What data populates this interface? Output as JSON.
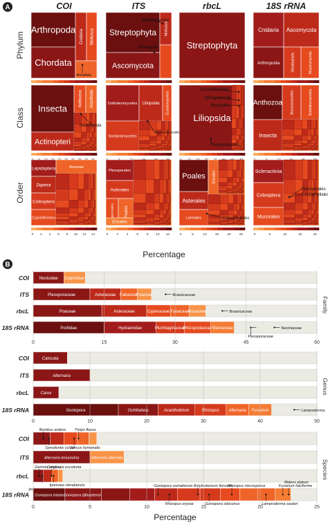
{
  "panel_a": {
    "badge": "A",
    "columns": [
      "COI",
      "ITS",
      "rbcL",
      "18S rRNA"
    ],
    "rows": [
      "Phylum",
      "Class",
      "Order"
    ],
    "xlabel": "Percentage",
    "cells": [
      [
        {
          "ticks": [
            "0",
            "10",
            "20",
            "30",
            "40",
            "50"
          ],
          "labels": [
            {
              "text": "Arthropoda"
            },
            {
              "text": "Chordata"
            },
            {
              "text": "Cnidaria"
            },
            {
              "text": "Mollusca"
            },
            {
              "text": "Annelida"
            }
          ]
        },
        {
          "ticks": [
            "0",
            "20",
            "40",
            "60"
          ],
          "labels": [
            {
              "text": "Streptophyta"
            },
            {
              "text": "Ascomycota"
            },
            {
              "text": "Basidiomycota"
            },
            {
              "text": "Arthropoda"
            },
            {
              "text": "Mollusca"
            }
          ]
        },
        {
          "ticks": [
            "0",
            "20",
            "40",
            "60",
            "80",
            "100"
          ],
          "labels": [
            {
              "text": "Streptophyta"
            }
          ]
        },
        {
          "ticks": [
            "0",
            "5",
            "10",
            "15",
            "20"
          ],
          "labels": [
            {
              "text": "Cnidaria"
            },
            {
              "text": "Ascomycota"
            },
            {
              "text": "Arthropoda"
            },
            {
              "text": "Streptophyta"
            },
            {
              "text": "Mucoromycota"
            }
          ]
        }
      ],
      [
        {
          "ticks": [
            "0",
            "5",
            "10",
            "15",
            "20",
            "25",
            "30",
            "35",
            "40",
            "45"
          ],
          "labels": [
            {
              "text": "Insecta"
            },
            {
              "text": "Actinopteri"
            },
            {
              "text": "Anthozoa"
            },
            {
              "text": "Arachnida"
            },
            {
              "text": "Gastropoda"
            }
          ]
        },
        {
          "ticks": [
            "0",
            "5",
            "10",
            "15",
            "20",
            "25"
          ],
          "labels": [
            {
              "text": "Dothideomycetes"
            },
            {
              "text": "Liliopsida"
            },
            {
              "text": "Eurotiomycetes"
            },
            {
              "text": "Agaricomycetes"
            },
            {
              "text": "Sordariomycetes"
            }
          ]
        },
        {
          "ticks": [
            "0",
            "10",
            "20",
            "30",
            "40",
            "50",
            "60",
            "70"
          ],
          "labels": [
            {
              "text": "Lycopodiopsida"
            },
            {
              "text": "Sphagnopsida"
            },
            {
              "text": "Bryopsida"
            },
            {
              "text": "Liliopsida"
            },
            {
              "text": "Polypodiopsida"
            }
          ]
        },
        {
          "ticks": [
            "0",
            "5",
            "10",
            "15",
            "20",
            "25"
          ],
          "labels": [
            {
              "text": "Anthozoa"
            },
            {
              "text": "Insecta"
            },
            {
              "text": "Mucoromycetes"
            },
            {
              "text": "Dothideomycetes"
            }
          ]
        }
      ],
      [
        {
          "ticks": [
            "0",
            "2",
            "4",
            "6",
            "8",
            "10",
            "12",
            "14"
          ],
          "labels": [
            {
              "text": "Lepidoptera"
            },
            {
              "text": "Diptera"
            },
            {
              "text": "Coleoptera"
            },
            {
              "text": "Cypriniformes"
            },
            {
              "text": "Araneae"
            }
          ]
        },
        {
          "ticks": [
            "0",
            "2",
            "4",
            "6",
            "8",
            "10",
            "12"
          ],
          "labels": [
            {
              "text": "Pleosporales"
            },
            {
              "text": "Asterales"
            },
            {
              "text": "Hypocreales"
            },
            {
              "text": "Poales"
            },
            {
              "text": "Ericales"
            }
          ]
        },
        {
          "ticks": [
            "0",
            "5",
            "10",
            "15",
            "20",
            "25"
          ],
          "labels": [
            {
              "text": "Poales"
            },
            {
              "text": "Asterales"
            },
            {
              "text": "Ericales"
            },
            {
              "text": "Lamiales"
            },
            {
              "text": "Caryophyllales"
            }
          ]
        },
        {
          "ticks": [
            "0",
            "5",
            "10",
            "15",
            "20"
          ],
          "labels": [
            {
              "text": "Scleractinia"
            },
            {
              "text": "Coleoptera"
            },
            {
              "text": "Mucorales"
            },
            {
              "text": "Pleosporales"
            },
            {
              "text": "Caryophyllales"
            }
          ]
        }
      ]
    ]
  },
  "panel_b": {
    "badge": "B",
    "xlabel": "Percentage",
    "chart_data": [
      {
        "type": "bar",
        "orientation": "horizontal-stacked",
        "group": "Family",
        "xlim": [
          0,
          60
        ],
        "ticks": [
          "0",
          "15",
          "30",
          "45",
          "60"
        ],
        "rows": [
          {
            "name": "COI",
            "segments": [
              {
                "label": "Noctuidae",
                "value": 6.5
              },
              {
                "label": "Cyprinidae",
                "value": 4.5
              }
            ],
            "callouts": []
          },
          {
            "name": "ITS",
            "segments": [
              {
                "label": "Pleosporaceae",
                "value": 12
              },
              {
                "label": "Asteraceae",
                "value": 6.5
              },
              {
                "label": "Fabaceae",
                "value": 3.5
              },
              {
                "label": "Poaceae",
                "value": 3
              }
            ],
            "callouts": [
              {
                "label": "Brassicaceae",
                "value": 28
              }
            ]
          },
          {
            "name": "rbcL",
            "segments": [
              {
                "label": "Poaceae",
                "value": 14.5
              },
              {
                "label": "Asteraceae",
                "value": 9.5
              },
              {
                "label": "Cyperaceae",
                "value": 5
              },
              {
                "label": "Fabaceae",
                "value": 4
              },
              {
                "label": "Rosaceae",
                "value": 3.5
              }
            ],
            "callouts": [
              {
                "label": "Brassicaceae",
                "value": 40
              }
            ]
          },
          {
            "name": "18S rRNA",
            "segments": [
              {
                "label": "Poritidae",
                "value": 15
              },
              {
                "label": "Hydraenidae",
                "value": 11
              },
              {
                "label": "Plumbaginaceae",
                "value": 6
              },
              {
                "label": "Rhizopodaceae",
                "value": 5.5
              },
              {
                "label": "Stereaceae",
                "value": 5
              }
            ],
            "callouts": [
              {
                "label": "Nectriaceae",
                "value": 51
              },
              {
                "label": "Pleosporaceae",
                "value": 46
              }
            ]
          }
        ]
      },
      {
        "type": "bar",
        "orientation": "horizontal-stacked",
        "group": "Genus",
        "xlim": [
          0,
          50
        ],
        "ticks": [
          "0",
          "10",
          "20",
          "30",
          "40",
          "50"
        ],
        "rows": [
          {
            "name": "COI",
            "segments": [
              {
                "label": "Catocala",
                "value": 6
              }
            ],
            "callouts": []
          },
          {
            "name": "ITS",
            "segments": [
              {
                "label": "Alternaria",
                "value": 10
              }
            ],
            "callouts": []
          },
          {
            "name": "rbcL",
            "segments": [
              {
                "label": "Carex",
                "value": 4.5
              }
            ],
            "callouts": []
          },
          {
            "name": "18S rRNA",
            "segments": [
              {
                "label": "Goniopora",
                "value": 15
              },
              {
                "label": "Ochthebius",
                "value": 7
              },
              {
                "label": "Acantholimon",
                "value": 6.5
              },
              {
                "label": "Rhizopus",
                "value": 5.5
              },
              {
                "label": "Alternaria",
                "value": 4
              },
              {
                "label": "Fusarium",
                "value": 4
              }
            ],
            "callouts": [
              {
                "label": "Lamproderma",
                "value": 46
              }
            ]
          }
        ]
      },
      {
        "type": "bar",
        "orientation": "horizontal-stacked",
        "group": "Species",
        "xlim": [
          0,
          25
        ],
        "ticks": [
          "0",
          "5",
          "10",
          "15",
          "20",
          "25"
        ],
        "rows": [
          {
            "name": "COI",
            "segments": [
              {
                "label": "",
                "value": 1.5
              },
              {
                "label": "",
                "value": 1.2
              },
              {
                "label": "",
                "value": 1.2
              },
              {
                "label": "",
                "value": 1
              },
              {
                "label": "",
                "value": 0.7
              }
            ],
            "callouts": [
              {
                "label": "Bombus ardens",
                "value": 0.9,
                "pos": "above"
              },
              {
                "label": "Thrips flavus",
                "value": 4.0,
                "pos": "above"
              },
              {
                "label": "Synodontis schall",
                "value": 1.4,
                "pos": "below"
              },
              {
                "label": "Juncus hymenalis",
                "value": 3.6,
                "pos": "below"
              }
            ]
          },
          {
            "name": "ITS",
            "segments": [
              {
                "label": "Alternaria tenuissima",
                "value": 5
              },
              {
                "label": "Alternaria alternata",
                "value": 3
              }
            ],
            "callouts": []
          },
          {
            "name": "rbcL",
            "segments": [
              {
                "label": "",
                "value": 0.9
              },
              {
                "label": "",
                "value": 0.7
              },
              {
                "label": "",
                "value": 0.6
              },
              {
                "label": "",
                "value": 0.4
              }
            ],
            "callouts": [
              {
                "label": "Genista anglica",
                "value": 0.5,
                "pos": "above"
              },
              {
                "label": "Colocasia esculenta",
                "value": 1.6,
                "pos": "above"
              },
              {
                "label": "Ipomoea sterabensis",
                "value": 1.8,
                "pos": "below"
              },
              {
                "label": "Ipolnoea oculomorpha",
                "value": 0.8,
                "pos": "below2"
              }
            ]
          },
          {
            "name": "18S rRNA",
            "segments": [
              {
                "label": "Goniopora lobata",
                "value": 2.8
              },
              {
                "label": "Goniopora djiboutiensis",
                "value": 3.2
              },
              {
                "label": "",
                "value": 2.5
              },
              {
                "label": "",
                "value": 2.2
              },
              {
                "label": "",
                "value": 2
              },
              {
                "label": "",
                "value": 2
              },
              {
                "label": "",
                "value": 1.8
              },
              {
                "label": "",
                "value": 1.7
              },
              {
                "label": "",
                "value": 1.6
              },
              {
                "label": "",
                "value": 1.5
              },
              {
                "label": "",
                "value": 1.4
              }
            ],
            "callouts": [
              {
                "label": "Goniopora somaliensis",
                "value": 11,
                "pos": "above"
              },
              {
                "label": "Amylostereum ferreum",
                "value": 14.5,
                "pos": "above"
              },
              {
                "label": "Rhizopus microsporus",
                "value": 17.5,
                "pos": "above"
              },
              {
                "label": "Fusarium falciforme",
                "value": 22,
                "pos": "above"
              },
              {
                "label": "Bidens alatum",
                "value": 22.5,
                "pos": "above2"
              },
              {
                "label": "Rhizopus oryzae",
                "value": 12,
                "pos": "below"
              },
              {
                "label": "Goniopora sibiconus",
                "value": 15.5,
                "pos": "below"
              },
              {
                "label": "Lamproderma sauteri",
                "value": 20.5,
                "pos": "below"
              }
            ]
          }
        ]
      }
    ]
  },
  "palette": [
    "#6b0f0f",
    "#8b1616",
    "#a31c1c",
    "#bd2a1a",
    "#d63a1d",
    "#e64a1f",
    "#ef6428",
    "#f47c34",
    "#f89448",
    "#fbad62"
  ],
  "track_color": "#ebebe4"
}
